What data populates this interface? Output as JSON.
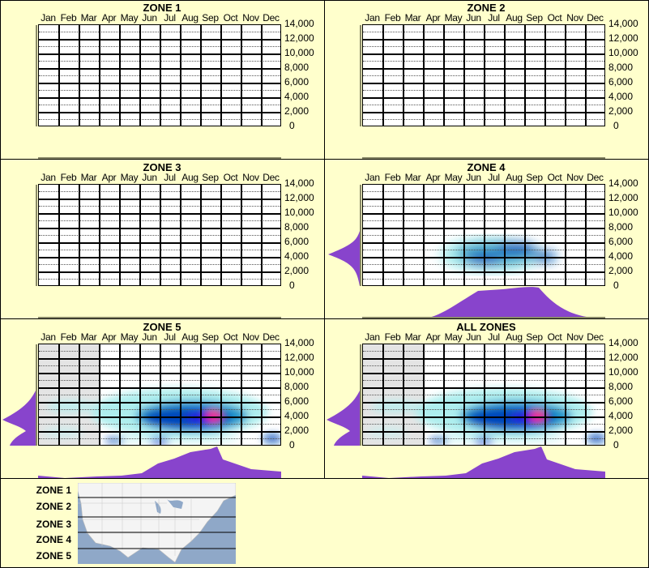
{
  "chart_data": [
    {
      "type": "heatmap",
      "title": "ZONE 1",
      "categories": [
        "Jan",
        "Feb",
        "Mar",
        "Apr",
        "May",
        "Jun",
        "Jul",
        "Aug",
        "Sep",
        "Oct",
        "Nov",
        "Dec"
      ],
      "yticks": [
        0,
        2000,
        4000,
        6000,
        8000,
        10000,
        12000,
        14000
      ],
      "ylim": [
        0,
        14000
      ],
      "values": "empty",
      "grid": true
    },
    {
      "type": "heatmap",
      "title": "ZONE 2",
      "categories": [
        "Jan",
        "Feb",
        "Mar",
        "Apr",
        "May",
        "Jun",
        "Jul",
        "Aug",
        "Sep",
        "Oct",
        "Nov",
        "Dec"
      ],
      "yticks": [
        0,
        2000,
        4000,
        6000,
        8000,
        10000,
        12000,
        14000
      ],
      "ylim": [
        0,
        14000
      ],
      "values": "empty",
      "grid": true
    },
    {
      "type": "heatmap",
      "title": "ZONE 3",
      "categories": [
        "Jan",
        "Feb",
        "Mar",
        "Apr",
        "May",
        "Jun",
        "Jul",
        "Aug",
        "Sep",
        "Oct",
        "Nov",
        "Dec"
      ],
      "yticks": [
        0,
        2000,
        4000,
        6000,
        8000,
        10000,
        12000,
        14000
      ],
      "ylim": [
        0,
        14000
      ],
      "values": "empty",
      "grid": true
    },
    {
      "type": "heatmap",
      "title": "ZONE 4",
      "categories": [
        "Jan",
        "Feb",
        "Mar",
        "Apr",
        "May",
        "Jun",
        "Jul",
        "Aug",
        "Sep",
        "Oct",
        "Nov",
        "Dec"
      ],
      "yticks": [
        0,
        2000,
        4000,
        6000,
        8000,
        10000,
        12000,
        14000
      ],
      "ylim": [
        0,
        14000
      ],
      "density_peaks": [
        {
          "month": "Jul",
          "elevation": 4500,
          "intensity": "high"
        },
        {
          "month": "Aug",
          "elevation": 5500,
          "intensity": "high"
        },
        {
          "month": "Sep",
          "elevation": 5000,
          "intensity": "high"
        },
        {
          "month": "Jun",
          "elevation": 4000,
          "intensity": "medium"
        }
      ],
      "month_marginal": [
        0,
        0,
        0,
        0.05,
        0.35,
        0.8,
        0.95,
        0.95,
        1.0,
        0.45,
        0.05,
        0
      ],
      "elevation_marginal_peak": 4500,
      "grid": true
    },
    {
      "type": "heatmap",
      "title": "ZONE 5",
      "categories": [
        "Jan",
        "Feb",
        "Mar",
        "Apr",
        "May",
        "Jun",
        "Jul",
        "Aug",
        "Sep",
        "Oct",
        "Nov",
        "Dec"
      ],
      "yticks": [
        0,
        2000,
        4000,
        6000,
        8000,
        10000,
        12000,
        14000
      ],
      "ylim": [
        0,
        14000
      ],
      "shaded_months": [
        "Jan",
        "Feb",
        "Mar"
      ],
      "density_peaks": [
        {
          "month": "Sep",
          "elevation": 4200,
          "intensity": "max"
        },
        {
          "month": "Aug",
          "elevation": 4000,
          "intensity": "high"
        },
        {
          "month": "Jun",
          "elevation": 0,
          "intensity": "high"
        },
        {
          "month": "Apr",
          "elevation": 500,
          "intensity": "medium"
        },
        {
          "month": "Dec",
          "elevation": 500,
          "intensity": "medium"
        }
      ],
      "month_marginal": [
        0.12,
        0.15,
        0.12,
        0.18,
        0.2,
        0.4,
        0.55,
        0.85,
        1.0,
        0.55,
        0.35,
        0.3
      ],
      "elevation_marginal_peak": 4000,
      "grid": true
    },
    {
      "type": "heatmap",
      "title": "ALL ZONES",
      "categories": [
        "Jan",
        "Feb",
        "Mar",
        "Apr",
        "May",
        "Jun",
        "Jul",
        "Aug",
        "Sep",
        "Oct",
        "Nov",
        "Dec"
      ],
      "yticks": [
        0,
        2000,
        4000,
        6000,
        8000,
        10000,
        12000,
        14000
      ],
      "ylim": [
        0,
        14000
      ],
      "shaded_months": [
        "Jan",
        "Feb",
        "Mar"
      ],
      "density_peaks": [
        {
          "month": "Sep",
          "elevation": 4200,
          "intensity": "max"
        },
        {
          "month": "Aug",
          "elevation": 4000,
          "intensity": "high"
        },
        {
          "month": "Jun",
          "elevation": 0,
          "intensity": "high"
        },
        {
          "month": "Apr",
          "elevation": 500,
          "intensity": "medium"
        },
        {
          "month": "Dec",
          "elevation": 500,
          "intensity": "medium"
        }
      ],
      "month_marginal": [
        0.12,
        0.15,
        0.12,
        0.18,
        0.2,
        0.4,
        0.55,
        0.85,
        1.0,
        0.55,
        0.35,
        0.3
      ],
      "elevation_marginal_peak": 4000,
      "grid": true
    }
  ],
  "panels": [
    {
      "title": "ZONE 1"
    },
    {
      "title": "ZONE 2"
    },
    {
      "title": "ZONE 3"
    },
    {
      "title": "ZONE 4"
    },
    {
      "title": "ZONE 5"
    },
    {
      "title": "ALL ZONES"
    }
  ],
  "months": [
    "Jan",
    "Feb",
    "Mar",
    "Apr",
    "May",
    "Jun",
    "Jul",
    "Aug",
    "Sep",
    "Oct",
    "Nov",
    "Dec"
  ],
  "yticks": [
    "14,000",
    "12,000",
    "10,000",
    "8,000",
    "6,000",
    "4,000",
    "2,000",
    "0"
  ],
  "legend": {
    "zones": [
      "ZONE 1",
      "ZONE 2",
      "ZONE 3",
      "ZONE 4",
      "ZONE 5"
    ],
    "map": "us-map-zones"
  },
  "colors": {
    "background": "#ffffcc",
    "marginal": "#8844cc",
    "shaded_month": "#e4e4e4",
    "heat_low": "#aeeeee",
    "heat_mid": "#0055bb",
    "heat_high": "#2222dd",
    "heat_max": "#ff2288"
  }
}
